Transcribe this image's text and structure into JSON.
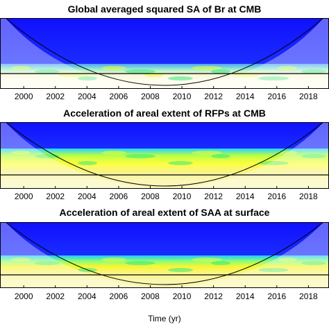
{
  "chart_data": [
    {
      "type": "heatmap",
      "title": "Global averaged squared SA of Br at CMB",
      "xlabel": "",
      "xlim": [
        1998.5,
        2019.3
      ],
      "x_ticks": [
        2000,
        2002,
        2004,
        2006,
        2008,
        2010,
        2012,
        2014,
        2016,
        2018
      ],
      "colormap": [
        "#1a1aff",
        "#00ccff",
        "#33ff66",
        "#ffff33",
        "#fff8c0",
        "#ffffff"
      ],
      "grid": false
    },
    {
      "type": "heatmap",
      "title": "Acceleration of areal extent of RFPs at CMB",
      "xlabel": "",
      "xlim": [
        1998.5,
        2019.3
      ],
      "x_ticks": [
        2000,
        2002,
        2004,
        2006,
        2008,
        2010,
        2012,
        2014,
        2016,
        2018
      ],
      "colormap": [
        "#1a1aff",
        "#00ccff",
        "#33ff66",
        "#ffff33",
        "#fff8c0",
        "#ffffff"
      ],
      "grid": false
    },
    {
      "type": "heatmap",
      "title": "Acceleration of areal extent of SAA at surface",
      "xlabel": "Time (yr)",
      "xlim": [
        1998.5,
        2019.3
      ],
      "x_ticks": [
        2000,
        2002,
        2004,
        2006,
        2008,
        2010,
        2012,
        2014,
        2016,
        2018
      ],
      "colormap": [
        "#1a1aff",
        "#00ccff",
        "#33ff66",
        "#ffff33",
        "#fff8c0",
        "#ffffff"
      ],
      "grid": false
    }
  ]
}
